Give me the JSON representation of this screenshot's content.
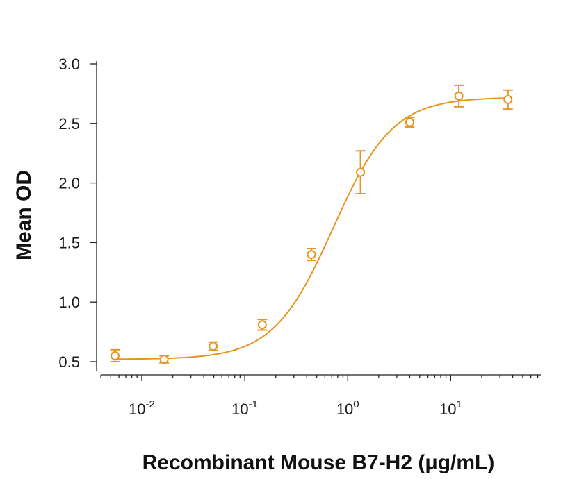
{
  "chart_data": {
    "type": "scatter",
    "title": "",
    "xlabel": "Recombinant Mouse B7-H2 (μg/mL)",
    "ylabel": "Mean OD",
    "xscale": "log",
    "xlim": [
      0.004,
      75
    ],
    "ylim": [
      0.42,
      3.0
    ],
    "yticks": [
      0.5,
      1.0,
      1.5,
      2.0,
      2.5,
      3.0
    ],
    "ytick_labels": [
      "0.5",
      "1.0",
      "1.5",
      "2.0",
      "2.5",
      "3.0"
    ],
    "xticks": [
      {
        "value": 0.01,
        "base": "10",
        "exp": "-2"
      },
      {
        "value": 0.1,
        "base": "10",
        "exp": "-1"
      },
      {
        "value": 1,
        "base": "10",
        "exp": "0"
      },
      {
        "value": 10,
        "base": "10",
        "exp": "1"
      }
    ],
    "color": "#E8931E",
    "series": [
      {
        "name": "Mean OD",
        "x": [
          0.0055,
          0.0165,
          0.0494,
          0.148,
          0.444,
          1.33,
          4.0,
          12.0,
          36.0
        ],
        "y": [
          0.55,
          0.52,
          0.63,
          0.81,
          1.4,
          2.09,
          2.51,
          2.73,
          2.7
        ],
        "error": [
          0.05,
          0.03,
          0.035,
          0.045,
          0.05,
          0.18,
          0.04,
          0.09,
          0.08
        ]
      }
    ],
    "fit": {
      "model": "4PL",
      "bottom": 0.52,
      "top": 2.72,
      "ec50": 0.72,
      "hill": 1.5
    }
  }
}
